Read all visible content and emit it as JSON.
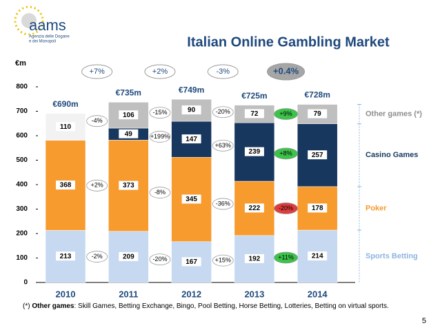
{
  "logo": {
    "name": "aams",
    "line1": "Agenzia delle Dogane",
    "line2": "e dei Monopoli"
  },
  "page_number": "5",
  "footnote": {
    "prefix": "(*)",
    "term": "Other games",
    "text": ": Skill Games, Betting Exchange, Bingo, Pool Betting, Horse Betting, Lotteries, Betting on virtual sports."
  },
  "chart_data": {
    "type": "stacked_bar",
    "title": "Italian Online Gambling Market",
    "y_unit": "€m",
    "categories": [
      "2010",
      "2011",
      "2012",
      "2013",
      "2014"
    ],
    "ylim": [
      0,
      800
    ],
    "yticks": [
      0,
      100,
      200,
      300,
      400,
      500,
      600,
      700,
      800
    ],
    "series": [
      {
        "name": "Sports Betting",
        "color": "#c6d9f1",
        "legend_color": "#8db4e2",
        "values": [
          213,
          209,
          167,
          192,
          214
        ],
        "changes": [
          "-2%",
          "-20%",
          "+15%",
          "+11%"
        ]
      },
      {
        "name": "Poker",
        "color": "#f79b2e",
        "legend_color": "#f79b2e",
        "values": [
          368,
          373,
          345,
          222,
          178
        ],
        "changes": [
          "+2%",
          "-8%",
          "-36%",
          "-20%"
        ]
      },
      {
        "name": "Casino Games",
        "color": "#17375e",
        "legend_color": "#17375e",
        "values": [
          null,
          49,
          147,
          239,
          257
        ],
        "changes": [
          null,
          "+199%",
          "+63%",
          "+8%"
        ]
      },
      {
        "name": "Other games (*)",
        "color": "#bfbfbf",
        "colors": [
          "#f2f2f2",
          "#bfbfbf",
          "#bfbfbf",
          "#bfbfbf",
          "#bfbfbf"
        ],
        "legend_color": "#8c8c8c",
        "values": [
          110,
          106,
          90,
          72,
          79
        ],
        "changes": [
          "-4%",
          "-15%",
          "-20%",
          "+9%"
        ]
      }
    ],
    "totals": {
      "values": [
        690,
        735,
        749,
        725,
        728
      ],
      "value_labels": [
        "€690m",
        "€735m",
        "€749m",
        "€725m",
        "€728m"
      ],
      "changes": [
        "+7%",
        "+2%",
        "-3%",
        "+0.4%"
      ]
    }
  }
}
